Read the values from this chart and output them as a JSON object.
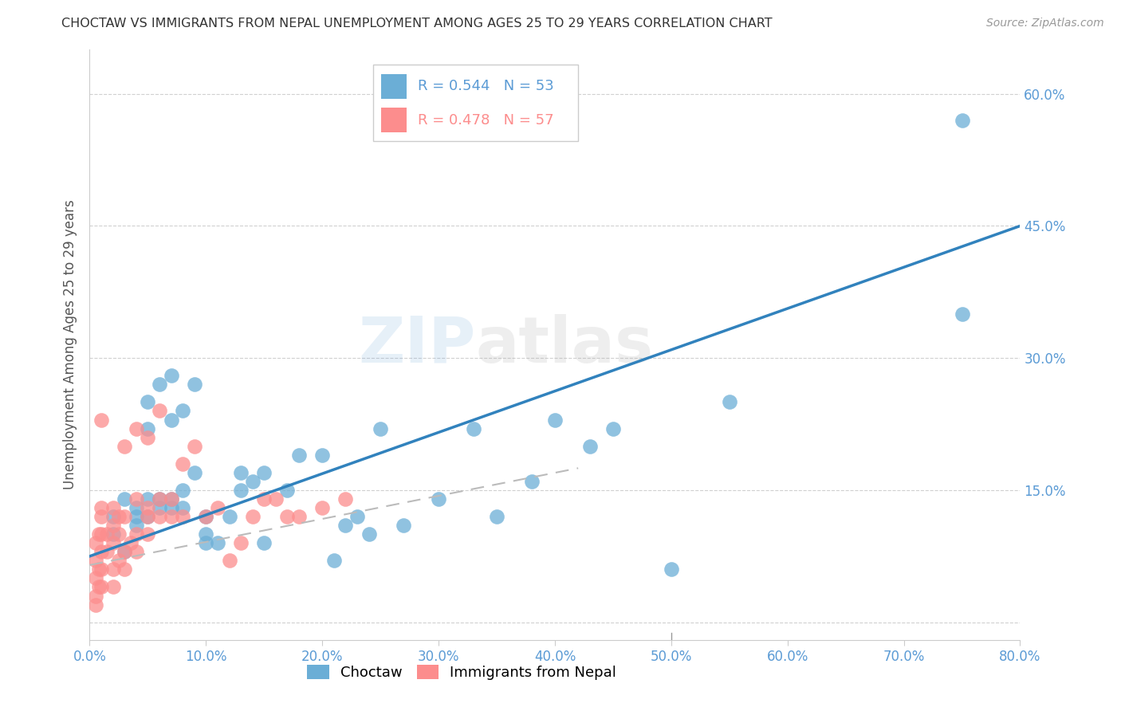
{
  "title": "CHOCTAW VS IMMIGRANTS FROM NEPAL UNEMPLOYMENT AMONG AGES 25 TO 29 YEARS CORRELATION CHART",
  "source": "Source: ZipAtlas.com",
  "ylabel": "Unemployment Among Ages 25 to 29 years",
  "xlim": [
    0.0,
    0.8
  ],
  "ylim": [
    -0.02,
    0.65
  ],
  "xticks": [
    0.0,
    0.1,
    0.2,
    0.3,
    0.4,
    0.5,
    0.6,
    0.7,
    0.8
  ],
  "ytick_vals": [
    0.0,
    0.15,
    0.3,
    0.45,
    0.6
  ],
  "choctaw_color": "#6baed6",
  "nepal_color": "#fc8d8d",
  "trend_blue": "#3182bd",
  "legend_r1": "R = 0.544",
  "legend_n1": "N = 53",
  "legend_r2": "R = 0.478",
  "legend_n2": "N = 57",
  "watermark_zip": "ZIP",
  "watermark_atlas": "atlas",
  "choctaw_x": [
    0.02,
    0.02,
    0.03,
    0.03,
    0.04,
    0.04,
    0.04,
    0.05,
    0.05,
    0.05,
    0.05,
    0.06,
    0.06,
    0.06,
    0.07,
    0.07,
    0.07,
    0.07,
    0.08,
    0.08,
    0.08,
    0.09,
    0.09,
    0.1,
    0.1,
    0.1,
    0.11,
    0.12,
    0.13,
    0.13,
    0.14,
    0.15,
    0.15,
    0.17,
    0.18,
    0.2,
    0.21,
    0.22,
    0.23,
    0.24,
    0.25,
    0.27,
    0.3,
    0.33,
    0.35,
    0.38,
    0.4,
    0.43,
    0.45,
    0.5,
    0.55,
    0.75,
    0.75
  ],
  "choctaw_y": [
    0.1,
    0.12,
    0.08,
    0.14,
    0.13,
    0.12,
    0.11,
    0.25,
    0.22,
    0.12,
    0.14,
    0.14,
    0.13,
    0.27,
    0.28,
    0.23,
    0.14,
    0.13,
    0.13,
    0.15,
    0.24,
    0.17,
    0.27,
    0.12,
    0.1,
    0.09,
    0.09,
    0.12,
    0.17,
    0.15,
    0.16,
    0.17,
    0.09,
    0.15,
    0.19,
    0.19,
    0.07,
    0.11,
    0.12,
    0.1,
    0.22,
    0.11,
    0.14,
    0.22,
    0.12,
    0.16,
    0.23,
    0.2,
    0.22,
    0.06,
    0.25,
    0.57,
    0.35
  ],
  "nepal_x": [
    0.005,
    0.005,
    0.005,
    0.005,
    0.005,
    0.008,
    0.008,
    0.008,
    0.01,
    0.01,
    0.01,
    0.01,
    0.01,
    0.01,
    0.01,
    0.015,
    0.015,
    0.02,
    0.02,
    0.02,
    0.02,
    0.02,
    0.025,
    0.025,
    0.025,
    0.03,
    0.03,
    0.03,
    0.03,
    0.035,
    0.04,
    0.04,
    0.04,
    0.04,
    0.05,
    0.05,
    0.05,
    0.05,
    0.06,
    0.06,
    0.06,
    0.07,
    0.07,
    0.08,
    0.08,
    0.09,
    0.1,
    0.11,
    0.12,
    0.13,
    0.14,
    0.15,
    0.16,
    0.17,
    0.18,
    0.2,
    0.22
  ],
  "nepal_y": [
    0.02,
    0.03,
    0.05,
    0.07,
    0.09,
    0.04,
    0.06,
    0.1,
    0.04,
    0.06,
    0.08,
    0.1,
    0.12,
    0.13,
    0.23,
    0.08,
    0.1,
    0.04,
    0.06,
    0.09,
    0.11,
    0.13,
    0.07,
    0.1,
    0.12,
    0.06,
    0.08,
    0.12,
    0.2,
    0.09,
    0.08,
    0.1,
    0.14,
    0.22,
    0.1,
    0.12,
    0.13,
    0.21,
    0.12,
    0.14,
    0.24,
    0.12,
    0.14,
    0.12,
    0.18,
    0.2,
    0.12,
    0.13,
    0.07,
    0.09,
    0.12,
    0.14,
    0.14,
    0.12,
    0.12,
    0.13,
    0.14
  ],
  "choctaw_trendline_x": [
    0.0,
    0.8
  ],
  "choctaw_trendline_y": [
    0.075,
    0.45
  ],
  "nepal_trendline_x": [
    0.0,
    0.42
  ],
  "nepal_trendline_y": [
    0.065,
    0.175
  ]
}
